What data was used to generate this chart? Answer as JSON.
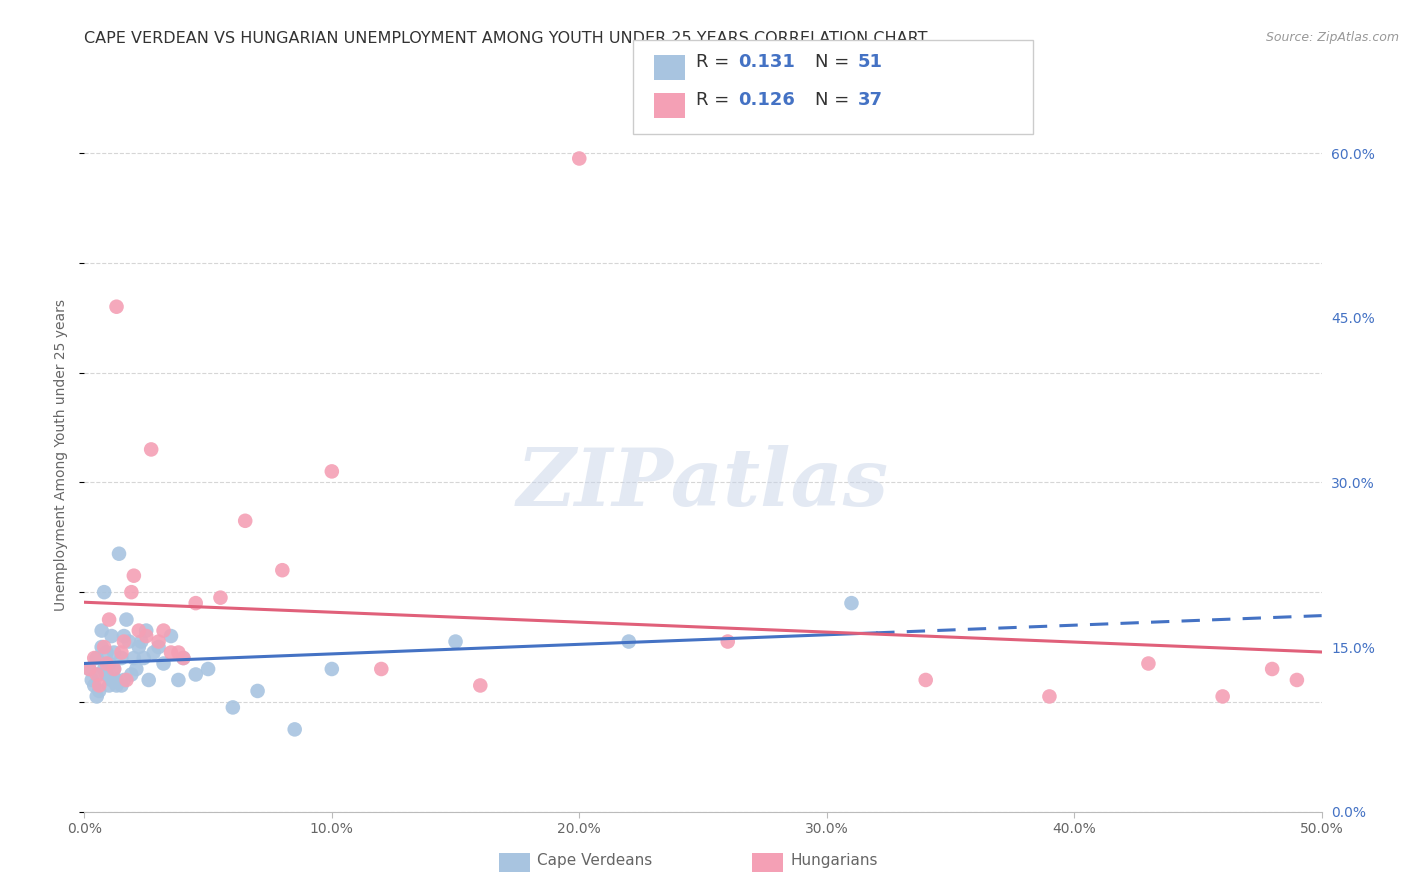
{
  "title": "CAPE VERDEAN VS HUNGARIAN UNEMPLOYMENT AMONG YOUTH UNDER 25 YEARS CORRELATION CHART",
  "source": "Source: ZipAtlas.com",
  "ylabel_label": "Unemployment Among Youth under 25 years",
  "xmin": 0.0,
  "xmax": 0.5,
  "ymin": 0.0,
  "ymax": 0.65,
  "cv_color": "#a8c4e0",
  "hu_color": "#f4a0b5",
  "cv_line_color": "#4472c4",
  "hu_line_color": "#e0607a",
  "grid_color": "#cccccc",
  "background_color": "#ffffff",
  "right_axis_color": "#4472c4",
  "title_fontsize": 11.5,
  "watermark_text": "ZIPatlas",
  "cv_scatter_x": [
    0.002,
    0.003,
    0.004,
    0.005,
    0.005,
    0.006,
    0.006,
    0.007,
    0.007,
    0.008,
    0.008,
    0.009,
    0.009,
    0.01,
    0.01,
    0.011,
    0.011,
    0.012,
    0.012,
    0.013,
    0.013,
    0.014,
    0.015,
    0.015,
    0.016,
    0.016,
    0.017,
    0.018,
    0.019,
    0.02,
    0.021,
    0.022,
    0.023,
    0.024,
    0.025,
    0.026,
    0.028,
    0.03,
    0.032,
    0.035,
    0.038,
    0.04,
    0.045,
    0.05,
    0.06,
    0.07,
    0.085,
    0.1,
    0.15,
    0.22,
    0.31
  ],
  "cv_scatter_y": [
    0.13,
    0.12,
    0.115,
    0.14,
    0.105,
    0.125,
    0.11,
    0.165,
    0.15,
    0.13,
    0.2,
    0.145,
    0.125,
    0.135,
    0.115,
    0.16,
    0.12,
    0.145,
    0.13,
    0.115,
    0.12,
    0.235,
    0.14,
    0.115,
    0.16,
    0.12,
    0.175,
    0.155,
    0.125,
    0.14,
    0.13,
    0.15,
    0.155,
    0.14,
    0.165,
    0.12,
    0.145,
    0.15,
    0.135,
    0.16,
    0.12,
    0.14,
    0.125,
    0.13,
    0.095,
    0.11,
    0.075,
    0.13,
    0.155,
    0.155,
    0.19
  ],
  "hu_scatter_x": [
    0.002,
    0.004,
    0.005,
    0.006,
    0.008,
    0.009,
    0.01,
    0.012,
    0.013,
    0.015,
    0.016,
    0.017,
    0.019,
    0.02,
    0.022,
    0.025,
    0.027,
    0.03,
    0.032,
    0.035,
    0.038,
    0.04,
    0.045,
    0.055,
    0.065,
    0.08,
    0.1,
    0.12,
    0.16,
    0.2,
    0.26,
    0.34,
    0.39,
    0.43,
    0.46,
    0.48,
    0.49
  ],
  "hu_scatter_y": [
    0.13,
    0.14,
    0.125,
    0.115,
    0.15,
    0.135,
    0.175,
    0.13,
    0.46,
    0.145,
    0.155,
    0.12,
    0.2,
    0.215,
    0.165,
    0.16,
    0.33,
    0.155,
    0.165,
    0.145,
    0.145,
    0.14,
    0.19,
    0.195,
    0.265,
    0.22,
    0.31,
    0.13,
    0.115,
    0.595,
    0.155,
    0.12,
    0.105,
    0.135,
    0.105,
    0.13,
    0.12
  ]
}
